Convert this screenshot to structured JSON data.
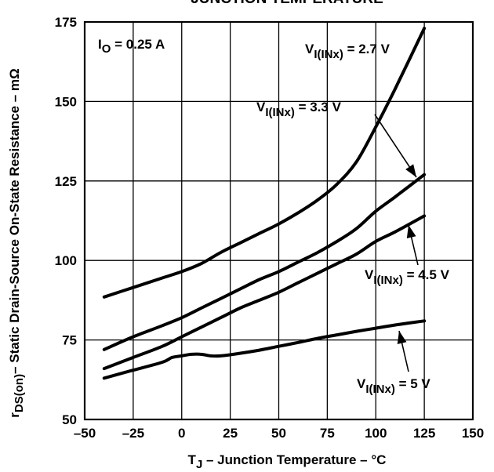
{
  "chart_data": {
    "type": "line",
    "title": "JUNCTION TEMPERATURE",
    "xlabel": {
      "main": "T",
      "sub": "J",
      "rest": " – Junction Temperature – °C"
    },
    "ylabel": {
      "main": "r",
      "sub": "DS(on)",
      "rest": "– Static Drain-Source On-State Resistance – mΩ"
    },
    "xlim": [
      -50,
      150
    ],
    "ylim": [
      50,
      175
    ],
    "xticks": [
      -50,
      -25,
      0,
      25,
      50,
      75,
      100,
      125,
      150
    ],
    "yticks": [
      50,
      75,
      100,
      125,
      150,
      175
    ],
    "xtick_labels": [
      "–50",
      "–25",
      "0",
      "25",
      "50",
      "75",
      "100",
      "125",
      "150"
    ],
    "ytick_labels": [
      "50",
      "75",
      "100",
      "125",
      "150",
      "175"
    ],
    "grid": true,
    "condition": {
      "main": "I",
      "sub": "O",
      "rest": " = 0.25 A"
    },
    "series": [
      {
        "name": {
          "main": "V",
          "sub": "I(INx)",
          "rest": " = 2.7 V"
        },
        "x": [
          -40,
          -25,
          -10,
          0,
          10,
          20,
          30,
          40,
          50,
          60,
          70,
          80,
          90,
          100,
          110,
          125
        ],
        "y": [
          88.5,
          91.5,
          94.5,
          96.5,
          99,
          102.5,
          105.5,
          108.5,
          111.5,
          115,
          119,
          124,
          131,
          142,
          154,
          173
        ]
      },
      {
        "name": {
          "main": "V",
          "sub": "I(INx)",
          "rest": " = 3.3 V"
        },
        "x": [
          -40,
          -25,
          -10,
          0,
          10,
          20,
          30,
          40,
          50,
          60,
          70,
          80,
          90,
          100,
          110,
          125
        ],
        "y": [
          72,
          76,
          79.5,
          82,
          85,
          88,
          91,
          94,
          96.5,
          99.5,
          102.5,
          106,
          110,
          115.5,
          120,
          127
        ]
      },
      {
        "name": {
          "main": "V",
          "sub": "I(INx)",
          "rest": " = 4.5 V"
        },
        "x": [
          -40,
          -25,
          -10,
          0,
          10,
          20,
          30,
          40,
          50,
          60,
          70,
          80,
          90,
          100,
          110,
          125
        ],
        "y": [
          66,
          69.5,
          73,
          76,
          79,
          82,
          85,
          87.5,
          90,
          93,
          96,
          99,
          102,
          106,
          109,
          114
        ]
      },
      {
        "name": {
          "main": "V",
          "sub": "I(INx)",
          "rest": " = 5 V"
        },
        "x": [
          -40,
          -25,
          -10,
          -5,
          0,
          5,
          10,
          15,
          20,
          30,
          40,
          50,
          60,
          70,
          80,
          90,
          100,
          110,
          125
        ],
        "y": [
          63,
          65.5,
          68,
          69.5,
          70,
          70.5,
          70.5,
          70,
          70,
          70.8,
          71.8,
          73,
          74.2,
          75.5,
          76.6,
          77.7,
          78.7,
          79.7,
          81
        ]
      }
    ]
  }
}
